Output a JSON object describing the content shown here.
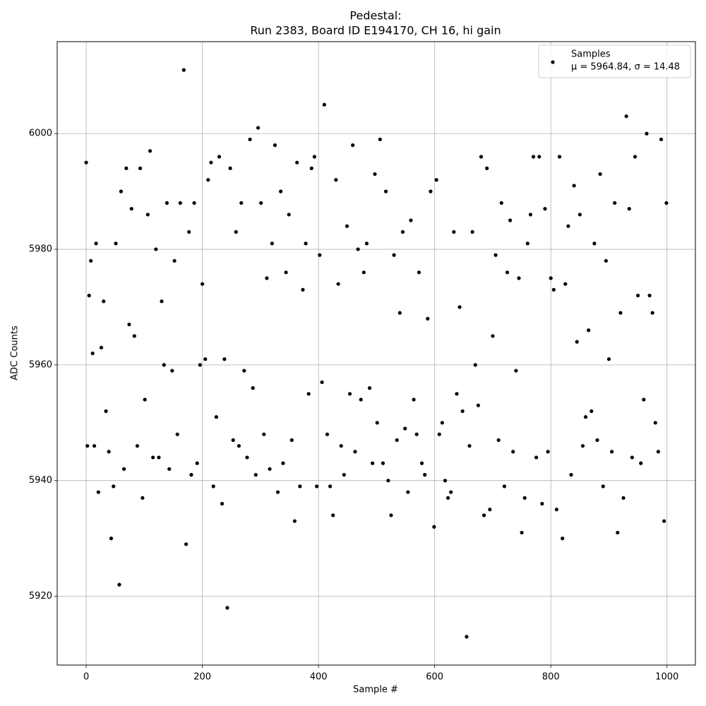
{
  "chart_data": {
    "type": "scatter",
    "title": "Pedestal:",
    "subtitle": "Run 2383, Board ID E194170, CH 16, hi gain",
    "x_label": "Sample #",
    "y_label": "ADC Counts",
    "xlim": [
      -49.95,
      1048.95
    ],
    "ylim": [
      5908.1,
      6015.9
    ],
    "xticks": [
      0,
      200,
      400,
      600,
      800,
      1000
    ],
    "yticks": [
      5920,
      5940,
      5960,
      5980,
      6000
    ],
    "grid": true,
    "legend": "upper right",
    "legend_stats": "μ = 5964.84, σ = 14.48",
    "x": [
      0,
      2,
      5,
      8,
      11,
      14,
      17,
      21,
      26,
      30,
      34,
      39,
      43,
      47,
      51,
      57,
      60,
      65,
      69,
      74,
      78,
      83,
      88,
      93,
      97,
      101,
      106,
      110,
      115,
      120,
      125,
      130,
      134,
      139,
      143,
      148,
      152,
      157,
      162,
      168,
      172,
      177,
      181,
      186,
      191,
      196,
      200,
      205,
      210,
      215,
      219,
      224,
      229,
      234,
      238,
      243,
      248,
      253,
      258,
      263,
      267,
      272,
      277,
      282,
      287,
      292,
      296,
      301,
      306,
      311,
      316,
      320,
      325,
      330,
      335,
      339,
      344,
      349,
      354,
      359,
      363,
      368,
      373,
      378,
      383,
      388,
      393,
      397,
      402,
      406,
      410,
      415,
      420,
      425,
      430,
      434,
      439,
      444,
      449,
      454,
      459,
      463,
      468,
      473,
      478,
      483,
      488,
      493,
      497,
      501,
      506,
      511,
      516,
      520,
      525,
      530,
      535,
      540,
      545,
      549,
      554,
      559,
      564,
      569,
      573,
      578,
      583,
      588,
      593,
      599,
      603,
      608,
      613,
      618,
      623,
      628,
      633,
      638,
      643,
      648,
      655,
      660,
      665,
      670,
      675,
      680,
      685,
      690,
      695,
      700,
      705,
      710,
      715,
      720,
      725,
      730,
      735,
      740,
      745,
      750,
      755,
      760,
      765,
      770,
      775,
      780,
      785,
      790,
      795,
      800,
      805,
      810,
      815,
      820,
      825,
      830,
      835,
      840,
      845,
      850,
      855,
      860,
      865,
      870,
      875,
      880,
      885,
      890,
      895,
      900,
      905,
      910,
      915,
      920,
      925,
      930,
      935,
      940,
      945,
      950,
      955,
      960,
      965,
      970,
      975,
      980,
      985,
      990,
      995,
      999
    ],
    "series": [
      {
        "name": "Samples",
        "color": "#000000",
        "values": [
          5995,
          5946,
          5972,
          5978,
          5962,
          5946,
          5981,
          5938,
          5963,
          5971,
          5952,
          5945,
          5930,
          5939,
          5981,
          5922,
          5990,
          5942,
          5994,
          5967,
          5987,
          5965,
          5946,
          5994,
          5937,
          5954,
          5986,
          5997,
          5944,
          5980,
          5944,
          5971,
          5960,
          5988,
          5942,
          5959,
          5978,
          5948,
          5988,
          6011,
          5929,
          5983,
          5941,
          5988,
          5943,
          5960,
          5974,
          5961,
          5992,
          5995,
          5939,
          5951,
          5996,
          5936,
          5961,
          5918,
          5994,
          5947,
          5983,
          5946,
          5988,
          5959,
          5944,
          5999,
          5956,
          5941,
          6001,
          5988,
          5948,
          5975,
          5942,
          5981,
          5998,
          5938,
          5990,
          5943,
          5976,
          5986,
          5947,
          5933,
          5995,
          5939,
          5973,
          5981,
          5955,
          5994,
          5996,
          5939,
          5979,
          5957,
          6005,
          5948,
          5939,
          5934,
          5992,
          5974,
          5946,
          5941,
          5984,
          5955,
          5998,
          5945,
          5980,
          5954,
          5976,
          5981,
          5956,
          5943,
          5993,
          5950,
          5999,
          5943,
          5990,
          5940,
          5934,
          5979,
          5947,
          5969,
          5983,
          5949,
          5938,
          5985,
          5954,
          5948,
          5976,
          5943,
          5941,
          5968,
          5990,
          5932,
          5992,
          5948,
          5950,
          5940,
          5937,
          5938,
          5983,
          5955,
          5970,
          5952,
          5913,
          5946,
          5983,
          5960,
          5953,
          5996,
          5934,
          5994,
          5935,
          5965,
          5979,
          5947,
          5988,
          5939,
          5976,
          5985,
          5945,
          5959,
          5975,
          5931,
          5937,
          5981,
          5986,
          5996,
          5944,
          5996,
          5936,
          5987,
          5945,
          5975,
          5973,
          5935,
          5996,
          5930,
          5974,
          5984,
          5941,
          5991,
          5964,
          5986,
          5946,
          5951,
          5966,
          5952,
          5981,
          5947,
          5993,
          5939,
          5978,
          5961,
          5945,
          5988,
          5931,
          5969,
          5937,
          6003,
          5987,
          5944,
          5996,
          5972,
          5943,
          5954,
          6000,
          5972,
          5969,
          5950,
          5945,
          5999,
          5933,
          5988
        ]
      }
    ]
  }
}
